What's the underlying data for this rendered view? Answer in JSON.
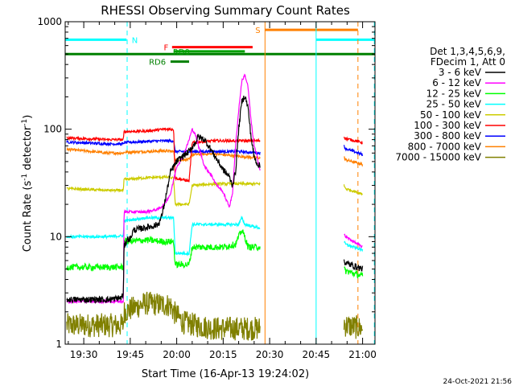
{
  "chart_data": {
    "type": "line",
    "title": "RHESSI Observing Summary Count Rates",
    "xlabel": "Start Time (16-Apr-13 19:24:02)",
    "ylabel_main": "Count Rate (s",
    "ylabel_sup1": "-1",
    "ylabel_mid": " detector",
    "ylabel_sup2": "-1",
    "ylabel_end": ")",
    "footer": "24-Oct-2021 21:56",
    "y_scale": "log",
    "ylim": [
      1,
      1000
    ],
    "y_ticks": [
      {
        "v": 1,
        "label": "1"
      },
      {
        "v": 10,
        "label": "10"
      },
      {
        "v": 100,
        "label": "100"
      },
      {
        "v": 1000,
        "label": "1000"
      }
    ],
    "xlim_min": [
      1164,
      1264
    ],
    "x_ticks": [
      {
        "m": 1170,
        "label": "19:30"
      },
      {
        "m": 1185,
        "label": "19:45"
      },
      {
        "m": 1200,
        "label": "20:00"
      },
      {
        "m": 1215,
        "label": "20:15"
      },
      {
        "m": 1230,
        "label": "20:30"
      },
      {
        "m": 1245,
        "label": "20:45"
      },
      {
        "m": 1260,
        "label": "21:00"
      }
    ],
    "legend_header": [
      "Det 1,3,4,5,6,9,",
      "FDecim 1, Att 0"
    ],
    "series": [
      {
        "name": "3 - 6 keV",
        "color": "#000000",
        "segments": [
          [
            [
              1164.5,
              2.6
            ],
            [
              1178,
              2.6
            ],
            [
              1182,
              2.7
            ],
            [
              1182.8,
              2.9
            ],
            [
              1183,
              8
            ],
            [
              1184,
              9.5
            ],
            [
              1185,
              9.5
            ],
            [
              1186,
              11.5
            ],
            [
              1189,
              12
            ],
            [
              1192,
              12.5
            ],
            [
              1194,
              13
            ],
            [
              1195,
              15
            ],
            [
              1196,
              20
            ],
            [
              1197,
              28
            ],
            [
              1198,
              40
            ],
            [
              1200,
              50
            ],
            [
              1202,
              56
            ],
            [
              1204,
              62
            ],
            [
              1206,
              75
            ],
            [
              1207,
              85
            ],
            [
              1209,
              80
            ],
            [
              1211,
              65
            ],
            [
              1213,
              52
            ],
            [
              1215,
              42
            ],
            [
              1217,
              36
            ],
            [
              1218,
              30
            ],
            [
              1219,
              40
            ],
            [
              1220,
              100
            ],
            [
              1221,
              180
            ],
            [
              1222,
              205
            ],
            [
              1223,
              160
            ],
            [
              1224,
              85
            ],
            [
              1225,
              55
            ],
            [
              1226,
              48
            ],
            [
              1227,
              45
            ]
          ],
          [
            [
              1254,
              6
            ],
            [
              1254.5,
              5.7
            ],
            [
              1260,
              5
            ]
          ]
        ]
      },
      {
        "name": "6 - 12 keV",
        "color": "#ff00ff",
        "segments": [
          [
            [
              1164.5,
              2.5
            ],
            [
              1182.8,
              2.5
            ],
            [
              1183,
              17
            ],
            [
              1189,
              17
            ],
            [
              1190,
              17
            ],
            [
              1194,
              18
            ],
            [
              1196,
              20
            ],
            [
              1198,
              25
            ],
            [
              1200,
              45
            ],
            [
              1202,
              55
            ],
            [
              1204,
              80
            ],
            [
              1205,
              100
            ],
            [
              1206,
              90
            ],
            [
              1207,
              70
            ],
            [
              1209,
              45
            ],
            [
              1211,
              38
            ],
            [
              1213,
              30
            ],
            [
              1215,
              26
            ],
            [
              1216,
              22
            ],
            [
              1217,
              19
            ],
            [
              1218,
              25
            ],
            [
              1219,
              70
            ],
            [
              1220,
              150
            ],
            [
              1221,
              280
            ],
            [
              1222,
              320
            ],
            [
              1223,
              250
            ],
            [
              1224,
              120
            ],
            [
              1225,
              70
            ],
            [
              1226,
              55
            ],
            [
              1227,
              40
            ]
          ],
          [
            [
              1254,
              10.5
            ],
            [
              1254.5,
              10
            ],
            [
              1260,
              8
            ]
          ]
        ]
      },
      {
        "name": "12 - 25 keV",
        "color": "#00ff00",
        "segments": [
          [
            [
              1164.5,
              5.2
            ],
            [
              1178,
              5.2
            ],
            [
              1182.8,
              5.2
            ],
            [
              1183,
              9
            ],
            [
              1190,
              9.3
            ],
            [
              1196,
              9
            ],
            [
              1199,
              9
            ],
            [
              1199.5,
              5.5
            ],
            [
              1204,
              5.5
            ],
            [
              1205,
              8
            ],
            [
              1210,
              8
            ],
            [
              1215,
              8
            ],
            [
              1219,
              8.5
            ],
            [
              1220,
              10
            ],
            [
              1221,
              11.5
            ],
            [
              1222,
              10
            ],
            [
              1223,
              8
            ],
            [
              1227,
              8
            ]
          ],
          [
            [
              1254,
              5
            ],
            [
              1254.5,
              4.8
            ],
            [
              1260,
              4.3
            ]
          ]
        ]
      },
      {
        "name": "25 - 50 keV",
        "color": "#00ffff",
        "segments": [
          [
            [
              1164.5,
              10
            ],
            [
              1178,
              10
            ],
            [
              1182.8,
              10.2
            ],
            [
              1183,
              14
            ],
            [
              1190,
              15
            ],
            [
              1196,
              15
            ],
            [
              1199,
              15
            ],
            [
              1199.5,
              7
            ],
            [
              1204,
              7
            ],
            [
              1205,
              13
            ],
            [
              1212,
              13
            ],
            [
              1218,
              13
            ],
            [
              1220,
              13
            ],
            [
              1221,
              15
            ],
            [
              1222,
              13
            ],
            [
              1227,
              12
            ]
          ],
          [
            [
              1254,
              9
            ],
            [
              1254.5,
              8.5
            ],
            [
              1260,
              7.5
            ]
          ]
        ]
      },
      {
        "name": "50 - 100 keV",
        "color": "#cccc00",
        "segments": [
          [
            [
              1164.5,
              28
            ],
            [
              1178,
              27
            ],
            [
              1182.8,
              27
            ],
            [
              1183,
              34
            ],
            [
              1188,
              35
            ],
            [
              1196,
              36
            ],
            [
              1199,
              35
            ],
            [
              1199.5,
              20
            ],
            [
              1204,
              20
            ],
            [
              1205,
              30
            ],
            [
              1212,
              31
            ],
            [
              1220,
              31
            ],
            [
              1227,
              31
            ]
          ],
          [
            [
              1254,
              30
            ],
            [
              1254.5,
              28
            ],
            [
              1260,
              25
            ]
          ]
        ]
      },
      {
        "name": "100 - 300 keV",
        "color": "#ff0000",
        "segments": [
          [
            [
              1164.5,
              83
            ],
            [
              1178,
              80
            ],
            [
              1182.8,
              80
            ],
            [
              1183,
              95
            ],
            [
              1190,
              96
            ],
            [
              1196,
              100
            ],
            [
              1199,
              100
            ],
            [
              1199.5,
              35
            ],
            [
              1204,
              33
            ],
            [
              1205,
              75
            ],
            [
              1212,
              78
            ],
            [
              1220,
              78
            ],
            [
              1227,
              78
            ]
          ],
          [
            [
              1254,
              85
            ],
            [
              1254.5,
              82
            ],
            [
              1260,
              75
            ]
          ]
        ]
      },
      {
        "name": "300 - 800 keV",
        "color": "#0000ff",
        "segments": [
          [
            [
              1164.5,
              76
            ],
            [
              1178,
              73
            ],
            [
              1182.8,
              73
            ],
            [
              1183,
              75
            ],
            [
              1190,
              77
            ],
            [
              1196,
              78
            ],
            [
              1199,
              78
            ],
            [
              1199.5,
              62
            ],
            [
              1204,
              62
            ],
            [
              1205,
              62
            ],
            [
              1212,
              62
            ],
            [
              1220,
              62
            ],
            [
              1227,
              60
            ]
          ],
          [
            [
              1254,
              70
            ],
            [
              1254.5,
              66
            ],
            [
              1260,
              58
            ]
          ]
        ]
      },
      {
        "name": "800 - 7000 keV",
        "color": "#ff8000",
        "segments": [
          [
            [
              1164.5,
              65
            ],
            [
              1178,
              60
            ],
            [
              1182.8,
              60
            ],
            [
              1183,
              61
            ],
            [
              1190,
              62
            ],
            [
              1196,
              63
            ],
            [
              1199,
              62
            ],
            [
              1199.5,
              52
            ],
            [
              1204,
              52
            ],
            [
              1205,
              58
            ],
            [
              1212,
              59
            ],
            [
              1220,
              56
            ],
            [
              1227,
              54
            ]
          ],
          [
            [
              1254,
              55
            ],
            [
              1254.5,
              52
            ],
            [
              1260,
              47
            ]
          ]
        ]
      },
      {
        "name": "7000 - 15000 keV",
        "color": "#808000",
        "segments": [
          [
            [
              1164.5,
              1.5
            ],
            [
              1180,
              1.5
            ],
            [
              1182.8,
              1.5
            ],
            [
              1183,
              2
            ],
            [
              1190,
              2.4
            ],
            [
              1198,
              2.3
            ],
            [
              1199,
              2
            ],
            [
              1202,
              1.6
            ],
            [
              1206,
              1.5
            ],
            [
              1212,
              1.4
            ],
            [
              1220,
              1.4
            ],
            [
              1227,
              1.4
            ]
          ],
          [
            [
              1254,
              1.6
            ],
            [
              1254.5,
              1.5
            ],
            [
              1260,
              1.4
            ]
          ]
        ]
      }
    ],
    "vlines": [
      {
        "m": 1184.0,
        "color": "#00ffff",
        "dash": true
      },
      {
        "m": 1228.5,
        "color": "#ff8000",
        "dash": false
      },
      {
        "m": 1245.0,
        "color": "#00ffff",
        "dash": false
      },
      {
        "m": 1258.5,
        "color": "#ff8000",
        "dash": true
      },
      {
        "m": 1263.8,
        "color": "#00ffff",
        "dash": true
      }
    ],
    "flags": [
      {
        "label": "N",
        "color": "#00ffff",
        "y": 680,
        "segments": [
          [
            1164.0,
            1183.8
          ],
          [
            1245.0,
            1263.8
          ]
        ],
        "label_m": 1185.5,
        "label_side": "right"
      },
      {
        "label": "S",
        "color": "#ff8000",
        "y": 840,
        "segments": [
          [
            1228.5,
            1258.5
          ]
        ],
        "label_m": 1227.0,
        "label_side": "left"
      },
      {
        "label": "F",
        "color": "#ff0000",
        "y": 580,
        "segments": [
          [
            1198.5,
            1224.5
          ]
        ],
        "label_m": 1197.3,
        "label_side": "left"
      },
      {
        "label": "RD0",
        "color": "#00a000",
        "y": 530,
        "segments": [
          [
            1199.0,
            1222.0
          ]
        ],
        "label_m": 1201.5,
        "label_side": "center"
      },
      {
        "label": "RD6",
        "color": "#008000",
        "y": 425,
        "segments": [
          [
            1198.0,
            1204.0
          ]
        ],
        "label_m": 1196.5,
        "label_side": "left"
      }
    ],
    "saa_line": {
      "color": "#008000",
      "y": 500,
      "segments": [
        [
          1164.0,
          1264.0
        ]
      ]
    }
  }
}
